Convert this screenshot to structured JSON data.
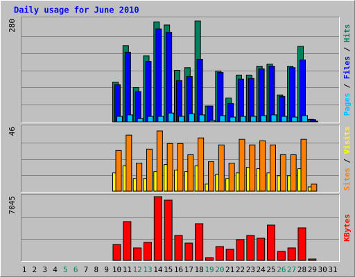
{
  "chart_data": [
    {
      "type": "bar",
      "title": "Daily usage for June 2010",
      "legend_separator": "/",
      "series": [
        {
          "name": "Pages",
          "color": "#00c0ff",
          "values": [
            0,
            0,
            0,
            0,
            0,
            0,
            0,
            0,
            0,
            15,
            19,
            9,
            15,
            15,
            24,
            15,
            22,
            19,
            4,
            17,
            13,
            15,
            15,
            17,
            19,
            15,
            13,
            17,
            2,
            0,
            0
          ]
        },
        {
          "name": "Files",
          "color": "#0000ff",
          "values": [
            0,
            0,
            0,
            0,
            0,
            0,
            0,
            0,
            0,
            101,
            189,
            82,
            164,
            252,
            243,
            112,
            123,
            170,
            43,
            134,
            50,
            116,
            118,
            144,
            151,
            69,
            147,
            168,
            6,
            0,
            0
          ]
        },
        {
          "name": "Hits",
          "color": "#00805c",
          "values": [
            0,
            0,
            0,
            0,
            0,
            0,
            0,
            0,
            0,
            108,
            207,
            93,
            179,
            271,
            263,
            140,
            147,
            274,
            43,
            138,
            65,
            127,
            127,
            151,
            157,
            73,
            151,
            205,
            7,
            0,
            0
          ]
        }
      ],
      "ylim": [
        0,
        280
      ],
      "yticks": [
        280
      ]
    },
    {
      "type": "bar",
      "legend_separator": "/",
      "series": [
        {
          "name": "Sites",
          "color": "#ff8000",
          "values": [
            0,
            0,
            0,
            0,
            0,
            0,
            0,
            0,
            0,
            29,
            40,
            20,
            30,
            43,
            34,
            34,
            26,
            38,
            21,
            33,
            20,
            37,
            33,
            36,
            33,
            26,
            26,
            37,
            5,
            0,
            0
          ]
        },
        {
          "name": "Visits",
          "color": "#ffff00",
          "values": [
            0,
            0,
            0,
            0,
            0,
            0,
            0,
            0,
            0,
            13,
            18,
            9,
            9,
            14,
            19,
            15,
            14,
            18,
            5,
            12,
            9,
            13,
            17,
            16,
            13,
            11,
            11,
            16,
            3,
            0,
            0
          ]
        }
      ],
      "ylim": [
        0,
        46
      ],
      "yticks": [
        46
      ]
    },
    {
      "type": "bar",
      "categories": [
        "1",
        "2",
        "3",
        "4",
        "5",
        "6",
        "7",
        "8",
        "9",
        "10",
        "11",
        "12",
        "13",
        "14",
        "15",
        "16",
        "17",
        "18",
        "19",
        "20",
        "21",
        "22",
        "23",
        "24",
        "25",
        "26",
        "27",
        "28",
        "29",
        "30",
        "31"
      ],
      "category_colors": [
        "#000000",
        "#000000",
        "#000000",
        "#000000",
        "#00805c",
        "#00805c",
        "#000000",
        "#000000",
        "#000000",
        "#000000",
        "#000000",
        "#00805c",
        "#00805c",
        "#000000",
        "#000000",
        "#000000",
        "#000000",
        "#000000",
        "#00805c",
        "#00805c",
        "#000000",
        "#000000",
        "#000000",
        "#000000",
        "#000000",
        "#00805c",
        "#00805c",
        "#000000",
        "#000000",
        "#000000",
        "#000000"
      ],
      "series": [
        {
          "name": "KBytes",
          "color": "#ff0000",
          "values": [
            0,
            0,
            0,
            0,
            0,
            0,
            0,
            0,
            0,
            1742,
            4242,
            1364,
            1970,
            6969,
            6590,
            2727,
            1894,
            4015,
            303,
            1515,
            1212,
            2273,
            2727,
            2424,
            3864,
            985,
            1364,
            3560,
            152,
            0,
            0
          ]
        }
      ],
      "ylim": [
        0,
        7045
      ],
      "yticks": [
        7045
      ]
    }
  ]
}
